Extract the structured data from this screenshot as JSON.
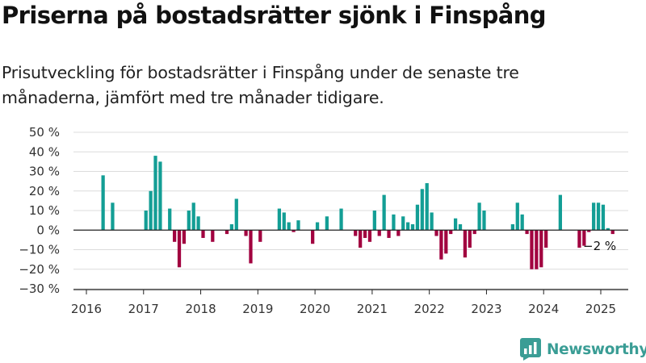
{
  "header": {
    "title": "Priserna på bostadsrätter sjönk i Finspång",
    "subtitle": "Prisutveckling för bostadsrätter i Finspång under de senaste tre månaderna, jämfört med tre månader tidigare."
  },
  "brand": {
    "name": "Newsworthy",
    "icon": "newsworthy-logo-icon",
    "color": "#3a9d95"
  },
  "chart_data": {
    "type": "bar",
    "x_type": "date",
    "x_start": "2016-04",
    "x_end": "2025-03",
    "x_ticks": [
      "2016",
      "2017",
      "2018",
      "2019",
      "2020",
      "2021",
      "2022",
      "2023",
      "2024",
      "2025"
    ],
    "y_ticks": [
      "−30 %",
      "−20 %",
      "−10 %",
      "0 %",
      "10 %",
      "20 %",
      "30 %",
      "40 %",
      "50 %"
    ],
    "ylim": [
      -30,
      50
    ],
    "y_unit": "%",
    "grid": true,
    "colors": {
      "positive": "#139e95",
      "negative": "#a1003f"
    },
    "end_label": "−2 %",
    "x": [
      "2016-04",
      "2016-05",
      "2016-06",
      "2016-07",
      "2016-08",
      "2016-09",
      "2016-10",
      "2016-11",
      "2016-12",
      "2017-01",
      "2017-02",
      "2017-03",
      "2017-04",
      "2017-05",
      "2017-06",
      "2017-07",
      "2017-08",
      "2017-09",
      "2017-10",
      "2017-11",
      "2017-12",
      "2018-01",
      "2018-02",
      "2018-03",
      "2018-04",
      "2018-05",
      "2018-06",
      "2018-07",
      "2018-08",
      "2018-09",
      "2018-10",
      "2018-11",
      "2018-12",
      "2019-01",
      "2019-02",
      "2019-03",
      "2019-04",
      "2019-05",
      "2019-06",
      "2019-07",
      "2019-08",
      "2019-09",
      "2019-10",
      "2019-11",
      "2019-12",
      "2020-01",
      "2020-02",
      "2020-03",
      "2020-04",
      "2020-05",
      "2020-06",
      "2020-07",
      "2020-08",
      "2020-09",
      "2020-10",
      "2020-11",
      "2020-12",
      "2021-01",
      "2021-02",
      "2021-03",
      "2021-04",
      "2021-05",
      "2021-06",
      "2021-07",
      "2021-08",
      "2021-09",
      "2021-10",
      "2021-11",
      "2021-12",
      "2022-01",
      "2022-02",
      "2022-03",
      "2022-04",
      "2022-05",
      "2022-06",
      "2022-07",
      "2022-08",
      "2022-09",
      "2022-10",
      "2022-11",
      "2022-12",
      "2023-01",
      "2023-02",
      "2023-03",
      "2023-04",
      "2023-05",
      "2023-06",
      "2023-07",
      "2023-08",
      "2023-09",
      "2023-10",
      "2023-11",
      "2023-12",
      "2024-01",
      "2024-02",
      "2024-03",
      "2024-04",
      "2024-05",
      "2024-06",
      "2024-07",
      "2024-08",
      "2024-09",
      "2024-10",
      "2024-11",
      "2024-12",
      "2025-01",
      "2025-02",
      "2025-03"
    ],
    "values": [
      28,
      0,
      14,
      0,
      0,
      0,
      0,
      0,
      0,
      10,
      20,
      38,
      35,
      0,
      11,
      -6,
      -19,
      -7,
      10,
      14,
      7,
      -4,
      0,
      -6,
      0,
      0,
      -2,
      3,
      16,
      0,
      -3,
      -17,
      0,
      -6,
      0,
      0,
      0,
      11,
      9,
      4,
      -1,
      5,
      0,
      0,
      -7,
      4,
      0,
      7,
      0,
      0,
      11,
      0,
      0,
      -3,
      -9,
      -4,
      -6,
      10,
      -3,
      18,
      -4,
      8,
      -3,
      7,
      4,
      3,
      13,
      21,
      24,
      9,
      -3,
      -15,
      -12,
      -2,
      6,
      3,
      -14,
      -9,
      -2,
      14,
      10,
      0,
      0,
      0,
      0,
      0,
      3,
      14,
      8,
      -2,
      -20,
      -20,
      -19,
      -9,
      0,
      0,
      18,
      0,
      0,
      0,
      -9,
      -8,
      -1,
      14,
      14,
      13,
      1,
      -2
    ]
  }
}
